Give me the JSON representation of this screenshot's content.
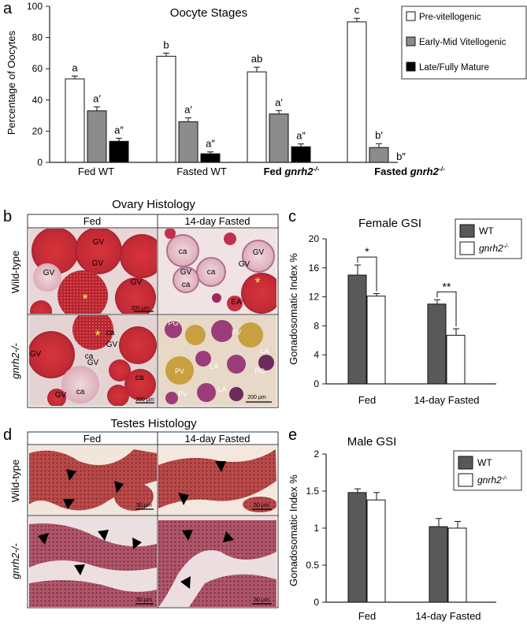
{
  "panel_letters": {
    "a": "a",
    "b": "b",
    "c": "c",
    "d": "d",
    "e": "e"
  },
  "chart_data": [
    {
      "panel": "a",
      "type": "bar",
      "title": "Oocyte Stages",
      "ylabel": "Percentage of Oocytes",
      "xlabel": "",
      "ylim": [
        0,
        100
      ],
      "yticks": [
        "0",
        "20",
        "40",
        "60",
        "80",
        "100"
      ],
      "categories": [
        "Fed WT",
        "Fasted WT",
        "Fed  gnrh2-/-",
        "Fasted  gnrh2-/-"
      ],
      "series": [
        {
          "name": "Pre-vitellogenic",
          "color": "#ffffff",
          "values": [
            53.5,
            68,
            58,
            90
          ],
          "errors": [
            1.8,
            2,
            3,
            2.3
          ],
          "letters": [
            "a",
            "b",
            "ab",
            "c"
          ]
        },
        {
          "name": "Early-Mid Vitellogenic",
          "color": "#8c8c8c",
          "values": [
            33,
            26,
            31,
            9.5
          ],
          "errors": [
            2.5,
            2.5,
            2.2,
            2.5
          ],
          "letters": [
            "a′",
            "a′",
            "a′",
            "b′"
          ]
        },
        {
          "name": "Late/Fully Mature",
          "color": "#000000",
          "values": [
            13.5,
            5.5,
            10,
            0
          ],
          "errors": [
            2,
            1.2,
            1.8,
            0
          ],
          "letters": [
            "a″",
            "a″",
            "a″",
            "b″"
          ]
        }
      ],
      "legend_position": "top-right"
    },
    {
      "panel": "c",
      "type": "bar",
      "title": "Female GSI",
      "ylabel": "Gonadosomatic Index %",
      "xlabel": "",
      "ylim": [
        0,
        20
      ],
      "yticks": [
        "0",
        "4",
        "8",
        "12",
        "16",
        "20"
      ],
      "categories": [
        "Fed",
        "14-day Fasted"
      ],
      "series": [
        {
          "name": "WT",
          "color": "#595959",
          "values": [
            15,
            11
          ],
          "errors": [
            1.4,
            0.6
          ]
        },
        {
          "name": "gnrh2-/-",
          "color": "#ffffff",
          "values": [
            12.1,
            6.7
          ],
          "errors": [
            0.35,
            0.9
          ]
        }
      ],
      "significance": [
        "*",
        "**"
      ],
      "legend_position": "top-right"
    },
    {
      "panel": "e",
      "type": "bar",
      "title": "Male GSI",
      "ylabel": "Gonadosomatic Index %",
      "xlabel": "",
      "ylim": [
        0,
        2
      ],
      "yticks": [
        "0",
        "0.5",
        "1",
        "1.5",
        "2"
      ],
      "categories": [
        "Fed",
        "14-day Fasted"
      ],
      "series": [
        {
          "name": "WT",
          "color": "#595959",
          "values": [
            1.48,
            1.02
          ],
          "errors": [
            0.05,
            0.11
          ]
        },
        {
          "name": "gnrh2-/-",
          "color": "#ffffff",
          "values": [
            1.38,
            1.0
          ],
          "errors": [
            0.1,
            0.09
          ]
        }
      ],
      "legend_position": "top-right"
    }
  ],
  "histology": {
    "ovary": {
      "title": "Ovary Histology",
      "columns": [
        "Fed",
        "14-day Fasted"
      ],
      "rows": [
        "Wild-type",
        "gnrh2-/-"
      ],
      "panels": [
        {
          "labels": [
            "GV",
            "GV",
            "GV",
            "GV",
            "*"
          ],
          "scale": "200 µm"
        },
        {
          "labels": [
            "ca",
            "GV",
            "GV",
            "ca",
            "ca",
            "GV",
            "EA",
            "*"
          ],
          "scale": "200 µm"
        },
        {
          "labels": [
            "ca",
            "GV",
            "GV",
            "ca",
            "GV",
            "GV",
            "ca",
            "ca",
            "*"
          ],
          "scale": "200 µm"
        },
        {
          "labels": [
            "PG",
            "PV",
            "PV",
            "LA",
            "LA",
            "PG",
            "PV",
            "LA"
          ],
          "scale": "200 µm"
        }
      ]
    },
    "testes": {
      "title": "Testes Histology",
      "columns": [
        "Fed",
        "14-day Fasted"
      ],
      "rows": [
        "Wild-type",
        "gnrh2-/-"
      ],
      "panels": [
        {
          "scale": "50 µm"
        },
        {
          "scale": "50 µm"
        },
        {
          "scale": "50 µm"
        },
        {
          "scale": "50 µm"
        }
      ]
    }
  }
}
